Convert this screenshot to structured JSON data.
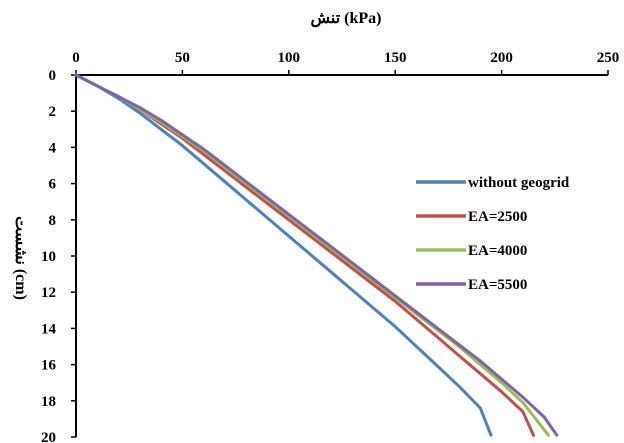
{
  "chart_data": {
    "type": "line",
    "title": "",
    "xlabel": "تنش (kPa)",
    "ylabel": "نشست (cm)",
    "x_axis_position": "top",
    "y_axis_inverted": true,
    "xlim": [
      0,
      250
    ],
    "ylim": [
      0,
      20
    ],
    "x_ticks": [
      "0",
      "50",
      "100",
      "150",
      "200",
      "250"
    ],
    "y_ticks": [
      "0",
      "2",
      "4",
      "6",
      "8",
      "10",
      "12",
      "14",
      "16",
      "18",
      "20"
    ],
    "grid": false,
    "legend_position": "right",
    "series": [
      {
        "name": "without geogrid",
        "color": "#4F81BD",
        "points": [
          [
            0,
            0
          ],
          [
            10,
            0.6
          ],
          [
            20,
            1.3
          ],
          [
            30,
            2.1
          ],
          [
            40,
            3.0
          ],
          [
            50,
            3.9
          ],
          [
            60,
            4.9
          ],
          [
            70,
            5.9
          ],
          [
            80,
            6.9
          ],
          [
            90,
            7.9
          ],
          [
            100,
            8.9
          ],
          [
            110,
            9.9
          ],
          [
            120,
            10.9
          ],
          [
            130,
            11.9
          ],
          [
            140,
            12.9
          ],
          [
            150,
            13.9
          ],
          [
            160,
            15.0
          ],
          [
            170,
            16.1
          ],
          [
            180,
            17.2
          ],
          [
            190,
            18.4
          ],
          [
            195,
            19.9
          ]
        ]
      },
      {
        "name": "EA=2500",
        "color": "#C0504D",
        "points": [
          [
            0,
            0
          ],
          [
            10,
            0.6
          ],
          [
            20,
            1.2
          ],
          [
            30,
            1.9
          ],
          [
            40,
            2.7
          ],
          [
            50,
            3.5
          ],
          [
            60,
            4.4
          ],
          [
            70,
            5.3
          ],
          [
            80,
            6.2
          ],
          [
            90,
            7.1
          ],
          [
            100,
            8.0
          ],
          [
            110,
            8.9
          ],
          [
            120,
            9.8
          ],
          [
            130,
            10.7
          ],
          [
            140,
            11.6
          ],
          [
            150,
            12.5
          ],
          [
            160,
            13.5
          ],
          [
            170,
            14.5
          ],
          [
            180,
            15.5
          ],
          [
            190,
            16.5
          ],
          [
            200,
            17.5
          ],
          [
            210,
            18.6
          ],
          [
            215,
            19.9
          ]
        ]
      },
      {
        "name": "EA=4000",
        "color": "#9BBB59",
        "points": [
          [
            0,
            0
          ],
          [
            10,
            0.6
          ],
          [
            20,
            1.2
          ],
          [
            30,
            1.9
          ],
          [
            40,
            2.6
          ],
          [
            50,
            3.4
          ],
          [
            60,
            4.2
          ],
          [
            70,
            5.1
          ],
          [
            80,
            6.0
          ],
          [
            90,
            6.9
          ],
          [
            100,
            7.8
          ],
          [
            110,
            8.7
          ],
          [
            120,
            9.6
          ],
          [
            130,
            10.5
          ],
          [
            140,
            11.4
          ],
          [
            150,
            12.3
          ],
          [
            160,
            13.2
          ],
          [
            170,
            14.1
          ],
          [
            180,
            15.0
          ],
          [
            190,
            16.0
          ],
          [
            200,
            17.0
          ],
          [
            210,
            18.1
          ],
          [
            222,
            19.9
          ]
        ]
      },
      {
        "name": "EA=5500",
        "color": "#8064A2",
        "points": [
          [
            0,
            0
          ],
          [
            10,
            0.6
          ],
          [
            20,
            1.2
          ],
          [
            30,
            1.8
          ],
          [
            40,
            2.5
          ],
          [
            50,
            3.3
          ],
          [
            60,
            4.1
          ],
          [
            70,
            5.0
          ],
          [
            80,
            5.9
          ],
          [
            90,
            6.8
          ],
          [
            100,
            7.7
          ],
          [
            110,
            8.6
          ],
          [
            120,
            9.5
          ],
          [
            130,
            10.4
          ],
          [
            140,
            11.3
          ],
          [
            150,
            12.2
          ],
          [
            160,
            13.1
          ],
          [
            170,
            14.0
          ],
          [
            180,
            14.9
          ],
          [
            190,
            15.8
          ],
          [
            200,
            16.8
          ],
          [
            210,
            17.8
          ],
          [
            220,
            18.9
          ],
          [
            226,
            19.9
          ]
        ]
      }
    ]
  }
}
